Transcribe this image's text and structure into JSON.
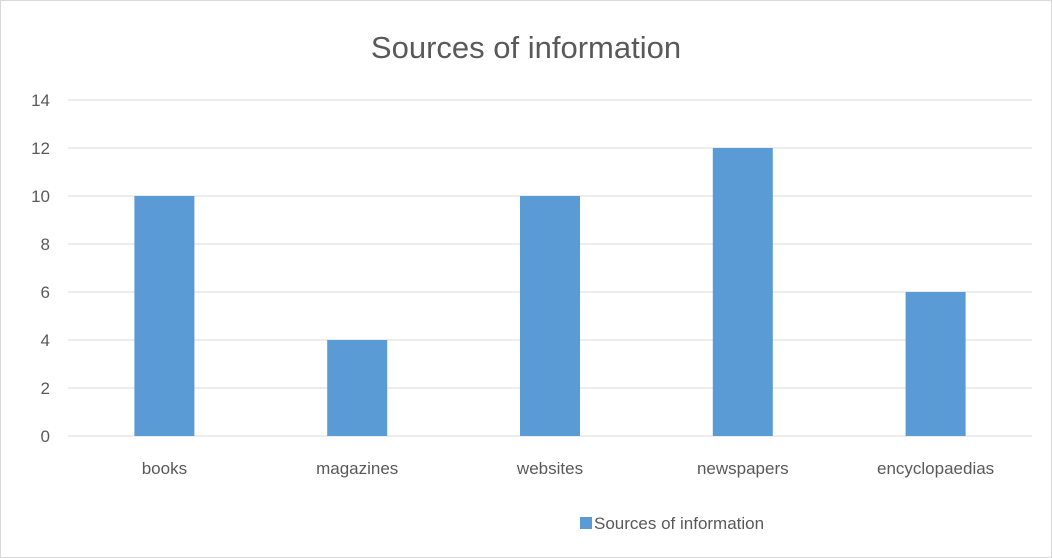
{
  "chart_data": {
    "type": "bar",
    "title": "Sources of information",
    "xlabel": "",
    "ylabel": "",
    "categories": [
      "books",
      "magazines",
      "websites",
      "newspapers",
      "encyclopaedias"
    ],
    "series": [
      {
        "name": "Sources of information",
        "values": [
          10,
          4,
          10,
          12,
          6
        ],
        "color": "#5b9bd5"
      }
    ],
    "ylim": [
      0,
      14
    ],
    "yticks": [
      0,
      2,
      4,
      6,
      8,
      10,
      12,
      14
    ],
    "grid": true,
    "legend_position": "bottom"
  }
}
